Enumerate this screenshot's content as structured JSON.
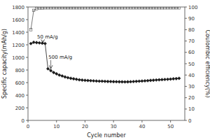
{
  "chart_data": {
    "type": "line",
    "xlabel": "Cycle number",
    "ylabel": "Specific capacity(mAh/g)",
    "y2label": "Coulombic efficiency(%)",
    "x": [
      1,
      2,
      3,
      4,
      5,
      6,
      7,
      8,
      9,
      10,
      11,
      12,
      13,
      14,
      15,
      16,
      17,
      18,
      19,
      20,
      21,
      22,
      23,
      24,
      25,
      26,
      27,
      28,
      29,
      30,
      31,
      32,
      33,
      34,
      35,
      36,
      37,
      38,
      39,
      40,
      41,
      42,
      43,
      44,
      45,
      46,
      47,
      48,
      49,
      50,
      51,
      52,
      53
    ],
    "series": [
      {
        "color": "#1a1a1a",
        "marker": "diamond",
        "values": [
          1220,
          1240,
          1235,
          1230,
          1225,
          1220,
          820,
          790,
          760,
          740,
          720,
          705,
          690,
          678,
          668,
          660,
          652,
          645,
          640,
          636,
          633,
          630,
          628,
          625,
          623,
          622,
          620,
          618,
          617,
          615,
          614,
          613,
          612,
          611,
          612,
          614,
          617,
          620,
          622,
          625,
          628,
          631,
          635,
          638,
          641,
          644,
          647,
          650,
          652,
          655,
          660,
          663,
          668
        ]
      },
      {
        "color": "#555555",
        "marker": "open-square",
        "axis": "y2",
        "values": [
          80,
          97,
          98.5,
          99,
          99,
          99.2,
          99.2,
          99.2,
          99.2,
          99.2,
          99.2,
          99.2,
          99.2,
          99.2,
          99.2,
          99.2,
          99.2,
          99.2,
          99.2,
          99.2,
          99.2,
          99.2,
          99.2,
          99.2,
          99.2,
          99.2,
          99.2,
          99.2,
          99.2,
          99.2,
          99.2,
          99.2,
          99.2,
          99.2,
          99.2,
          99.2,
          99.2,
          99.2,
          99.2,
          99.2,
          99.2,
          99.2,
          99.2,
          99.2,
          99.2,
          99.2,
          99.2,
          99.2,
          99.2,
          99.2,
          99.2,
          99.2,
          99.2
        ]
      }
    ],
    "xlim": [
      0,
      55
    ],
    "xticks": [
      0,
      10,
      20,
      30,
      40,
      50
    ],
    "ylim": [
      0,
      1800
    ],
    "yticks": [
      0,
      200,
      400,
      600,
      800,
      1000,
      1200,
      1400,
      1600,
      1800
    ],
    "y2lim": [
      0,
      100
    ],
    "y2ticks": [
      0,
      10,
      20,
      30,
      40,
      50,
      60,
      70,
      80,
      90,
      100
    ],
    "annotations": [
      {
        "text": "50 mA/g",
        "x": 3.2,
        "y": 1295,
        "arrow_x": 5.2,
        "arrow_y": 1230
      },
      {
        "text": "500 mA/g",
        "x": 7.2,
        "y": 980,
        "arrow_x": 8.0,
        "arrow_y": 820
      }
    ],
    "grid": false
  }
}
